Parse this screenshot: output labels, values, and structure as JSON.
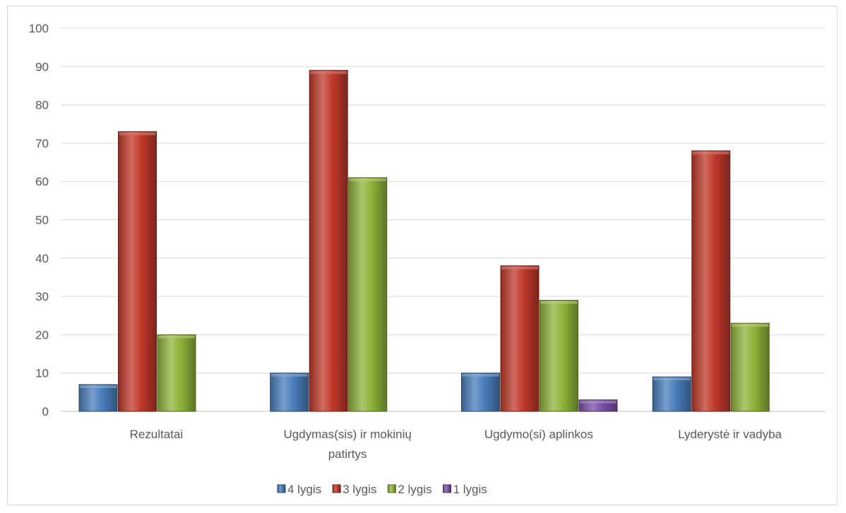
{
  "chart_data": {
    "type": "bar",
    "categories": [
      [
        "Rezultatai"
      ],
      [
        "Ugdymas(sis) ir mokinių",
        "patirtys"
      ],
      [
        "Ugdymo(si) aplinkos"
      ],
      [
        "Lyderystė ir vadyba"
      ]
    ],
    "series": [
      {
        "name": "4 lygis",
        "color": "#4a7ebb",
        "values": [
          7,
          10,
          10,
          9
        ]
      },
      {
        "name": "3 lygis",
        "color": "#c0392b",
        "values": [
          73,
          89,
          38,
          68
        ]
      },
      {
        "name": "2 lygis",
        "color": "#8fb339",
        "values": [
          20,
          61,
          29,
          23
        ]
      },
      {
        "name": "1 lygis",
        "color": "#7b4fa6",
        "values": [
          null,
          null,
          3,
          null
        ]
      }
    ],
    "ylim": [
      0,
      100
    ],
    "yticks": [
      0,
      10,
      20,
      30,
      40,
      50,
      60,
      70,
      80,
      90,
      100
    ],
    "grid": true,
    "legend_position": "bottom",
    "title": "",
    "xlabel": "",
    "ylabel": ""
  }
}
